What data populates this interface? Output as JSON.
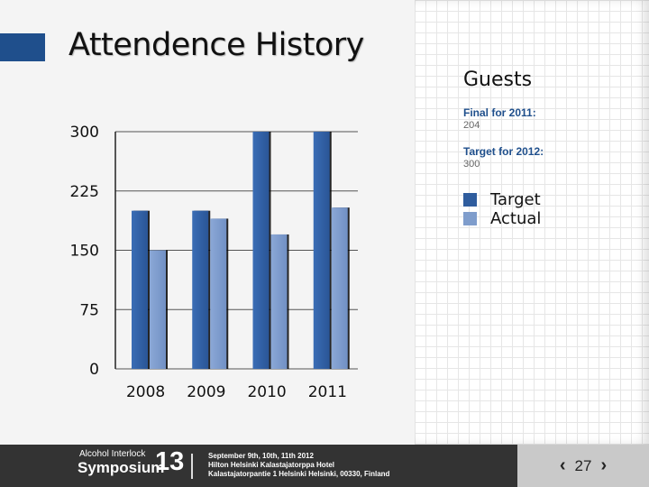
{
  "slide": {
    "title": "Attendence History"
  },
  "chart_data": {
    "type": "bar",
    "categories": [
      "2008",
      "2009",
      "2010",
      "2011"
    ],
    "series": [
      {
        "name": "Target",
        "values": [
          200,
          200,
          300,
          300
        ],
        "color": "#2f5d9e"
      },
      {
        "name": "Actual",
        "values": [
          150,
          190,
          170,
          204
        ],
        "color": "#7f9dcc"
      }
    ],
    "yticks": [
      "0",
      "75",
      "150",
      "225",
      "300"
    ],
    "ylim": [
      0,
      300
    ],
    "grid": true,
    "legend": "right"
  },
  "guests": {
    "heading": "Guests",
    "final_label": "Final for 2011:",
    "final_value": "204",
    "target_label": "Target for 2012:",
    "target_value": "300"
  },
  "legend": {
    "target": "Target",
    "actual": "Actual"
  },
  "footer": {
    "logo_line1": "Alcohol Interlock",
    "logo_line2": "Symposium",
    "logo_number": "13",
    "dates": "September 9th, 10th, 11th 2012",
    "hotel": "Hilton Helsinki Kalastajatorppa Hotel",
    "address": "Kalastajatorpantie 1 Helsinki Helsinki, 00330, Finland"
  },
  "pager": {
    "prev": "‹",
    "page": "27",
    "next": "›"
  }
}
